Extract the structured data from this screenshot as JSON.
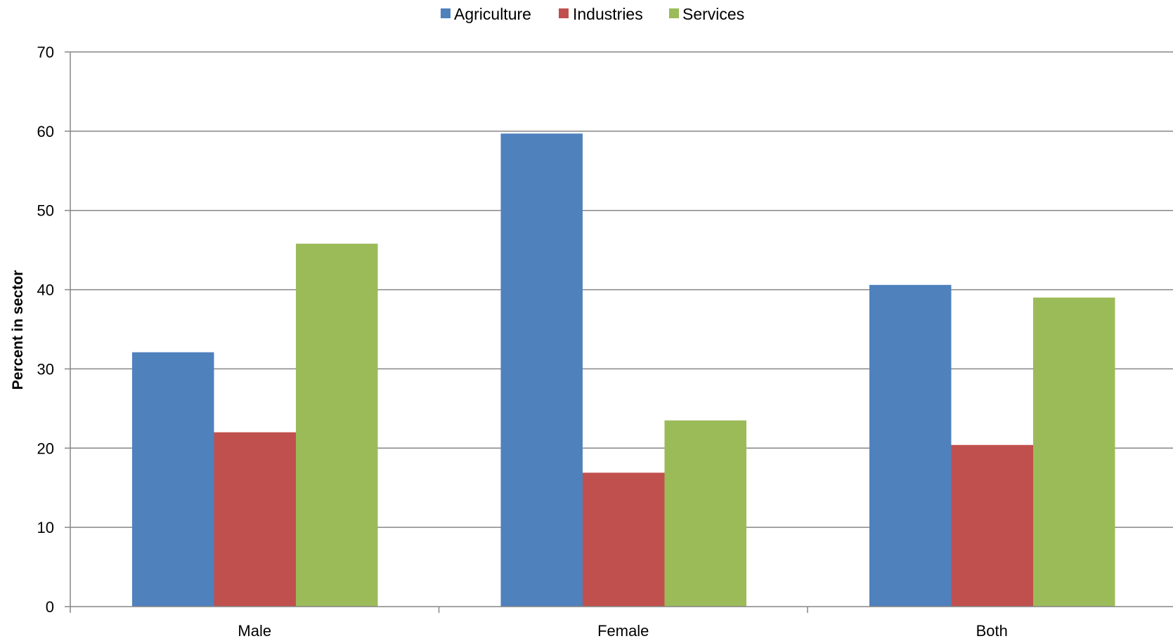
{
  "chart_data": {
    "type": "bar",
    "title": "",
    "xlabel": "",
    "ylabel": "Percent in sector",
    "categories": [
      "Male",
      "Female",
      "Both"
    ],
    "series": [
      {
        "name": "Agriculture",
        "color": "#4F81BD",
        "values": [
          32.1,
          59.7,
          40.6
        ]
      },
      {
        "name": "Industries",
        "color": "#C0504D",
        "values": [
          22.0,
          16.9,
          20.4
        ]
      },
      {
        "name": "Services",
        "color": "#9BBB59",
        "values": [
          45.8,
          23.5,
          39.0
        ]
      }
    ],
    "ylim": [
      0,
      70
    ],
    "yticks": [
      "0",
      "10",
      "20",
      "30",
      "40",
      "50",
      "60",
      "70"
    ],
    "grid": true,
    "legend_position": "top-center"
  }
}
